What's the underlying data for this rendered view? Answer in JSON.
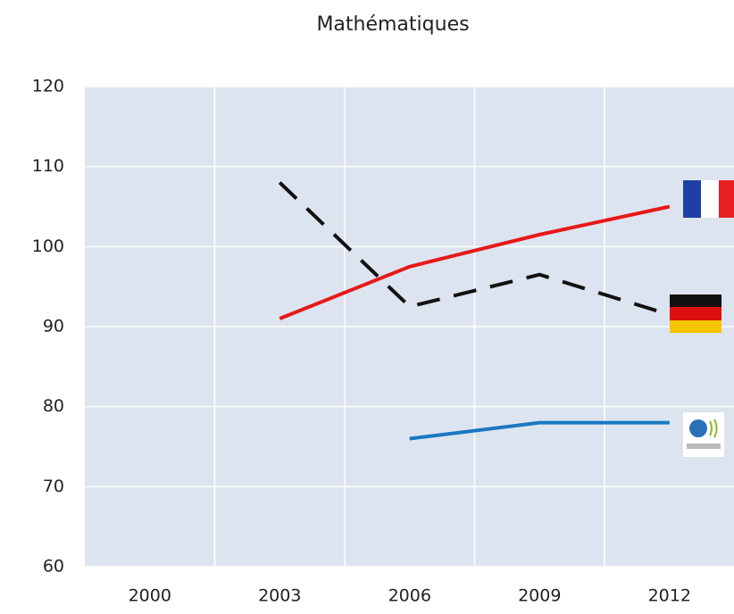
{
  "chart_data": {
    "type": "line",
    "title": "Mathématiques",
    "categories": [
      "2000",
      "2003",
      "2006",
      "2009",
      "2012"
    ],
    "series": [
      {
        "color": "#e81818",
        "dash": false,
        "values": [
          null,
          91,
          97.5,
          101.5,
          105
        ]
      },
      {
        "color": "#111111",
        "dash": true,
        "values": [
          null,
          108,
          92.5,
          96.5,
          91.5
        ]
      },
      {
        "color": "#1a78c2",
        "dash": false,
        "values": [
          null,
          null,
          76,
          78,
          78
        ]
      }
    ],
    "ylim": [
      60,
      120
    ],
    "yticks": [
      60,
      70,
      80,
      90,
      100,
      110,
      120
    ],
    "grid": true,
    "background": "#dce4f0"
  }
}
